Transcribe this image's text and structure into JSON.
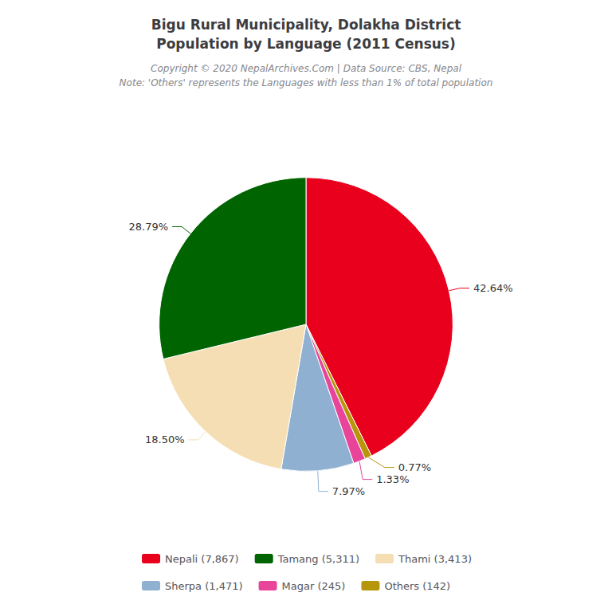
{
  "chart_data": {
    "type": "pie",
    "title": "Bigu Rural Municipality, Dolakha District\nPopulation by Language (2011 Census)",
    "subtitle": "Copyright © 2020 NepalArchives.Com | Data Source: CBS, Nepal",
    "annotations": [
      "Note: 'Others' represents the Languages with less than 1% of total population"
    ],
    "categories": [
      "Nepali (7,867)",
      "Others (142)",
      "Magar (245)",
      "Sherpa (1,471)",
      "Thami (3,413)",
      "Tamang (5,311)"
    ],
    "values": [
      42.64,
      0.77,
      1.33,
      7.97,
      18.5,
      28.79
    ],
    "value_labels": [
      "42.64%",
      "0.77%",
      "1.33%",
      "7.97%",
      "18.50%",
      "28.79%"
    ],
    "colors": [
      "#e8001c",
      "#b8960c",
      "#e8449a",
      "#8fb0d0",
      "#f5deb3",
      "#006400"
    ],
    "data_labels": true,
    "legend": "bottom"
  }
}
